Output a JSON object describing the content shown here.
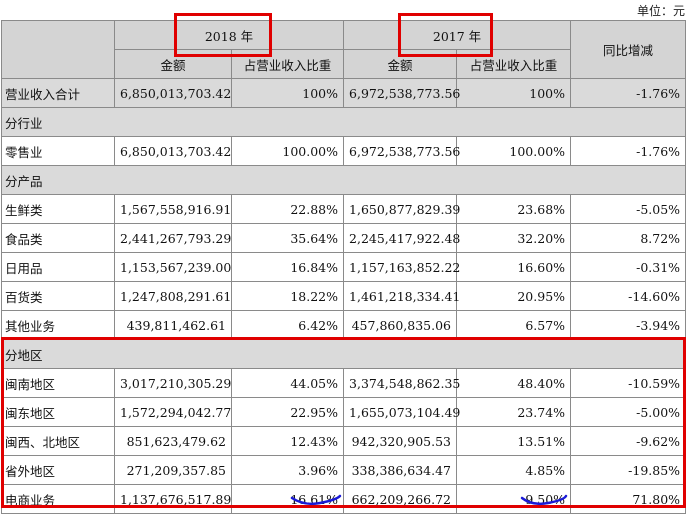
{
  "unit_label": "单位：元",
  "header": {
    "year_2018": "2018 年",
    "year_2017": "2017 年",
    "yoy": "同比增减",
    "amount": "金额",
    "ratio": "占营业收入比重"
  },
  "total": {
    "label": "营业收入合计",
    "amt18": "6,850,013,703.42",
    "pct18": "100%",
    "amt17": "6,972,538,773.56",
    "pct17": "100%",
    "yoy": "-1.76%"
  },
  "sections": {
    "industry": "分行业",
    "product": "分产品",
    "region": "分地区"
  },
  "industry_rows": [
    {
      "label": "零售业",
      "amt18": "6,850,013,703.42",
      "pct18": "100.00%",
      "amt17": "6,972,538,773.56",
      "pct17": "100.00%",
      "yoy": "-1.76%"
    }
  ],
  "product_rows": [
    {
      "label": "生鲜类",
      "amt18": "1,567,558,916.91",
      "pct18": "22.88%",
      "amt17": "1,650,877,829.39",
      "pct17": "23.68%",
      "yoy": "-5.05%"
    },
    {
      "label": "食品类",
      "amt18": "2,441,267,793.29",
      "pct18": "35.64%",
      "amt17": "2,245,417,922.48",
      "pct17": "32.20%",
      "yoy": "8.72%"
    },
    {
      "label": "日用品",
      "amt18": "1,153,567,239.00",
      "pct18": "16.84%",
      "amt17": "1,157,163,852.22",
      "pct17": "16.60%",
      "yoy": "-0.31%"
    },
    {
      "label": "百货类",
      "amt18": "1,247,808,291.61",
      "pct18": "18.22%",
      "amt17": "1,461,218,334.41",
      "pct17": "20.95%",
      "yoy": "-14.60%"
    },
    {
      "label": "其他业务",
      "amt18": "439,811,462.61",
      "pct18": "6.42%",
      "amt17": "457,860,835.06",
      "pct17": "6.57%",
      "yoy": "-3.94%"
    }
  ],
  "region_rows": [
    {
      "label": "闽南地区",
      "amt18": "3,017,210,305.29",
      "pct18": "44.05%",
      "amt17": "3,374,548,862.35",
      "pct17": "48.40%",
      "yoy": "-10.59%"
    },
    {
      "label": "闽东地区",
      "amt18": "1,572,294,042.77",
      "pct18": "22.95%",
      "amt17": "1,655,073,104.49",
      "pct17": "23.74%",
      "yoy": "-5.00%"
    },
    {
      "label": "闽西、北地区",
      "amt18": "851,623,479.62",
      "pct18": "12.43%",
      "amt17": "942,320,905.53",
      "pct17": "13.51%",
      "yoy": "-9.62%"
    },
    {
      "label": "省外地区",
      "amt18": "271,209,357.85",
      "pct18": "3.96%",
      "amt17": "338,386,634.47",
      "pct17": "4.85%",
      "yoy": "-19.85%"
    },
    {
      "label": "电商业务",
      "amt18": "1,137,676,517.89",
      "pct18": "16.61%",
      "amt17": "662,209,266.72",
      "pct17": "9.50%",
      "yoy": "71.80%"
    }
  ],
  "colors": {
    "highlight_box": "#e00000",
    "underline": "#1a1ad6",
    "header_bg": "#d4d4d4",
    "section_bg": "#dadada"
  }
}
